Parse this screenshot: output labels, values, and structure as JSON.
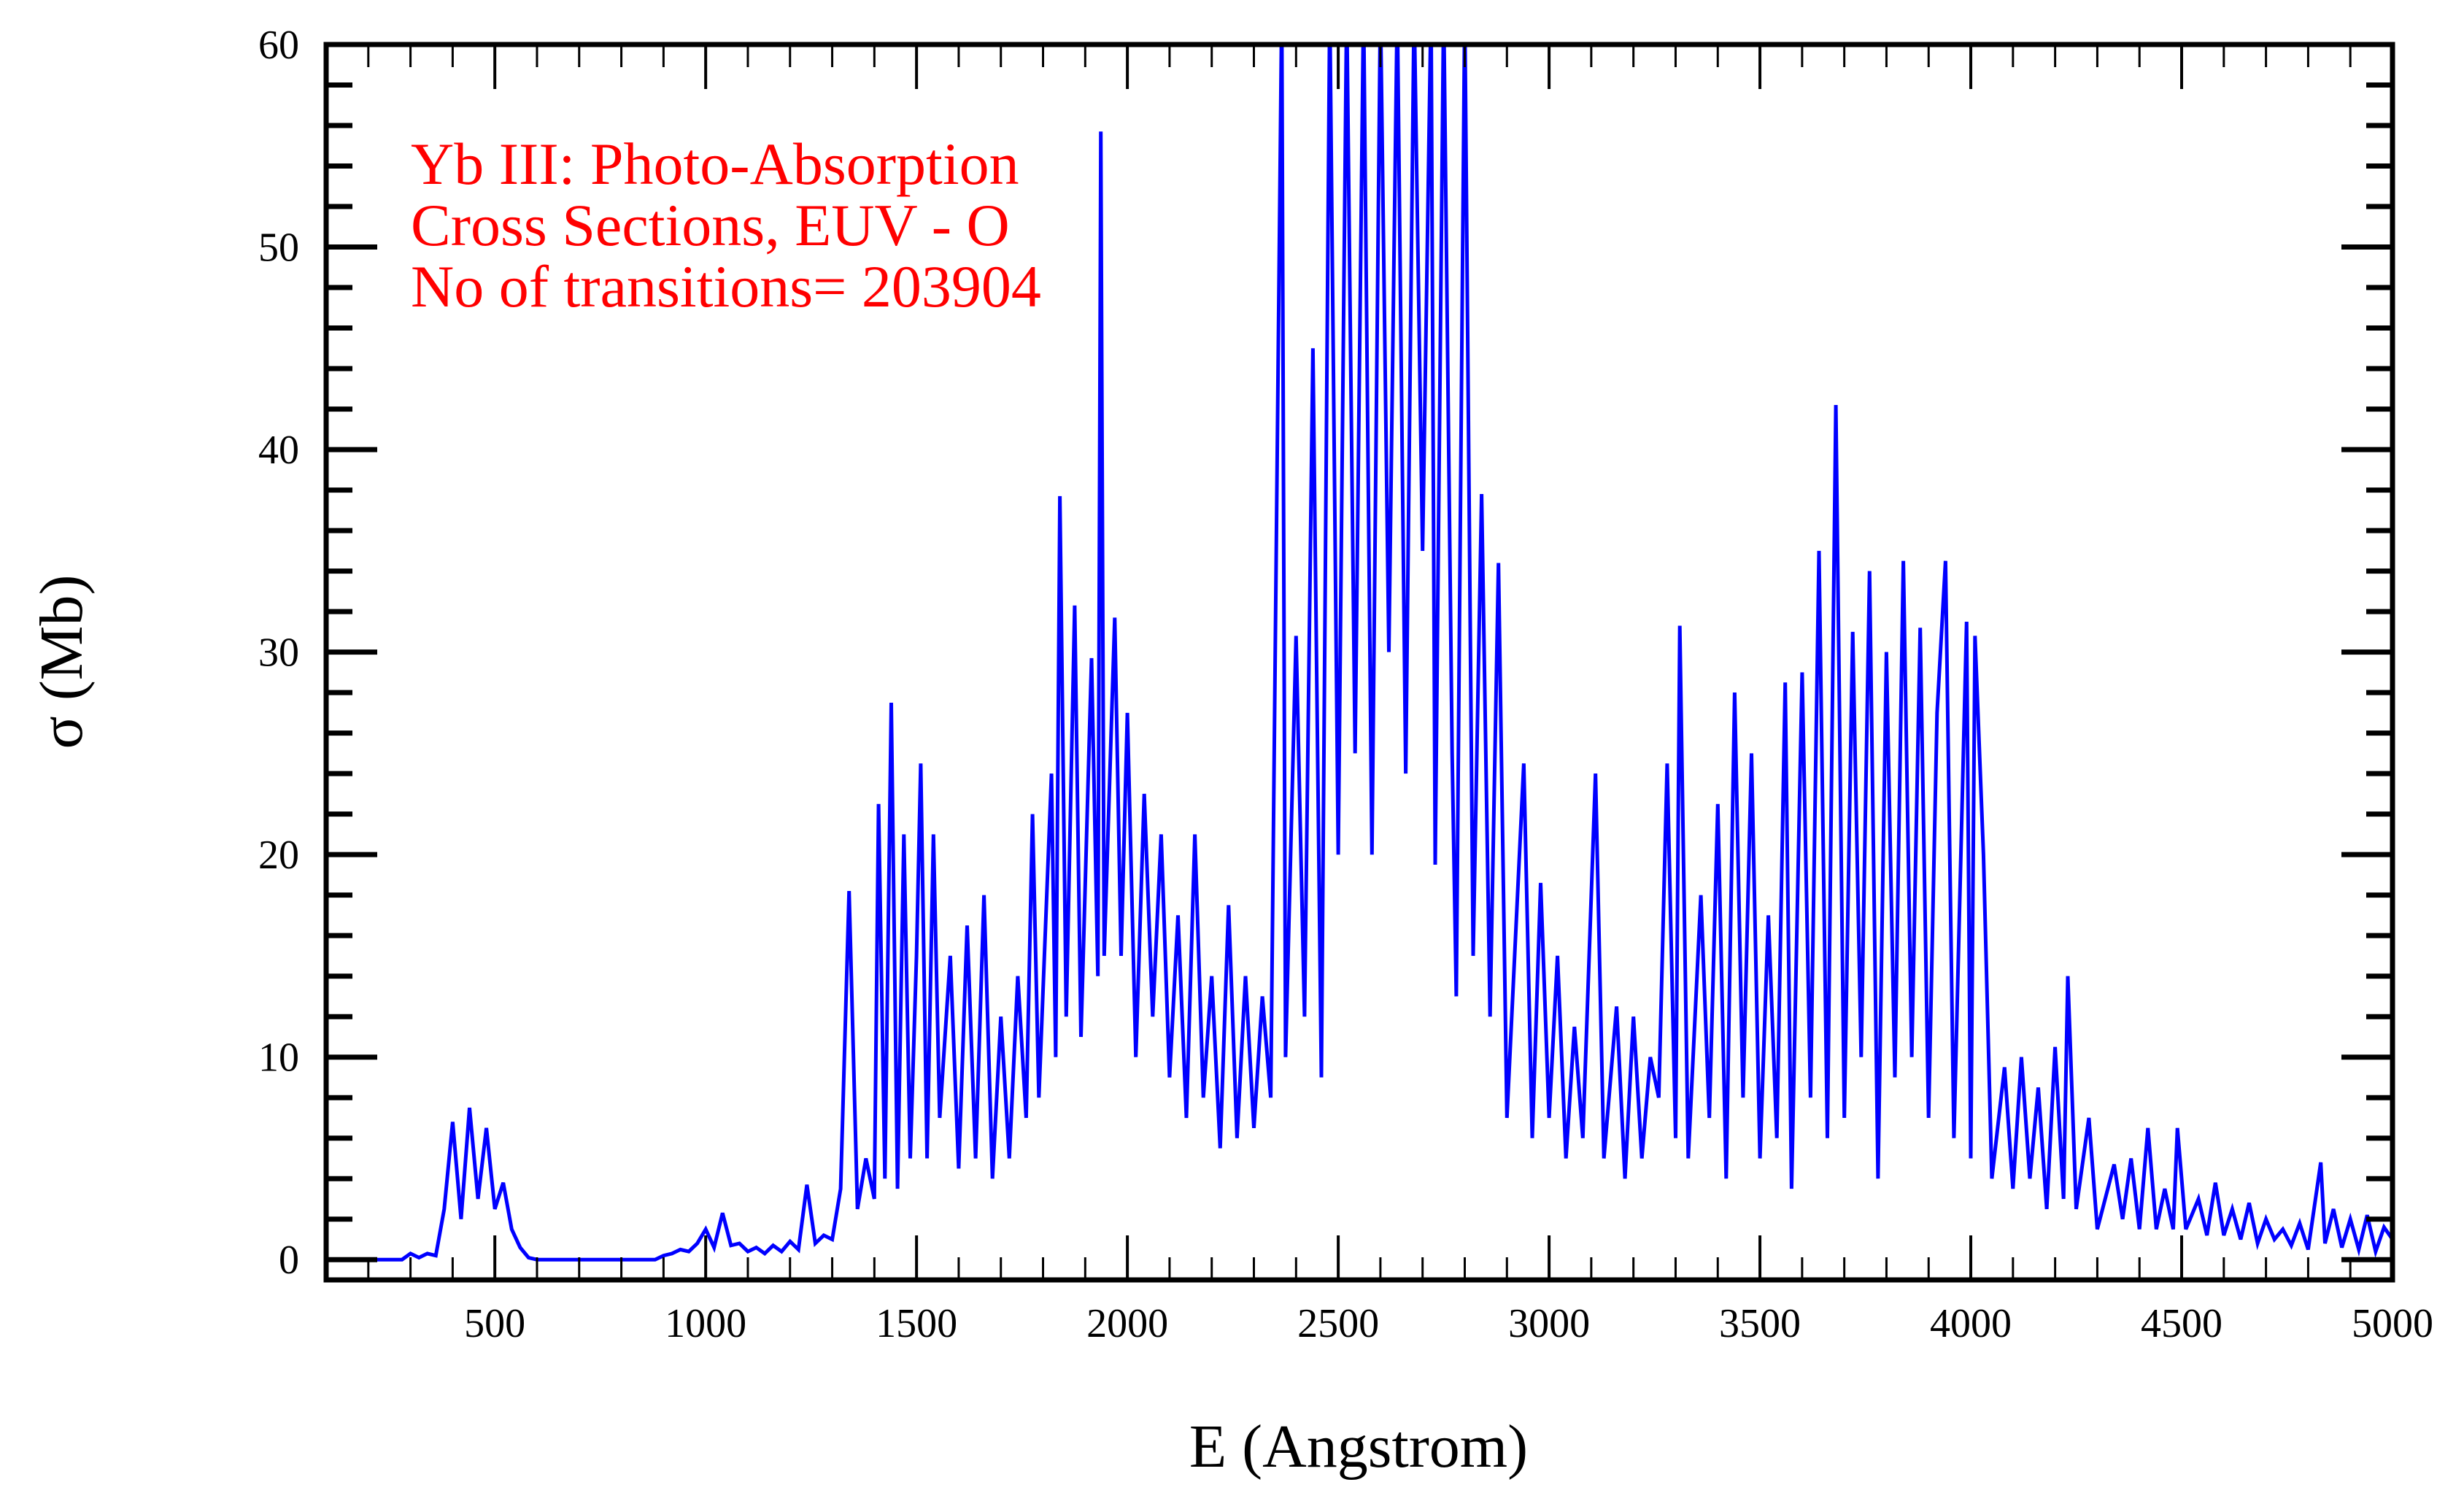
{
  "chart_data": {
    "type": "line",
    "title": "",
    "annotations": [
      "Yb III: Photo-Absorption",
      "Cross Sections, EUV - O",
      "No of transitions= 203904"
    ],
    "annotation_color": "#ff0000",
    "xlabel": "E (Angstrom)",
    "ylabel": "σ (Mb)",
    "xlim": [
      100,
      5000
    ],
    "ylim": [
      -1,
      60
    ],
    "xticks": [
      500,
      1000,
      1500,
      2000,
      2500,
      3000,
      3500,
      4000,
      4500,
      5000
    ],
    "xtick_labels": [
      "500",
      "1000",
      "1500",
      "2000",
      "2500",
      "3000",
      "3500",
      "4000",
      "4500",
      "5000"
    ],
    "x_minor_step": 100,
    "yticks": [
      0,
      10,
      20,
      30,
      40,
      50,
      60
    ],
    "ytick_labels": [
      "0",
      "10",
      "20",
      "30",
      "40",
      "50",
      "60"
    ],
    "y_minor_step": 2,
    "grid": false,
    "legend": "none",
    "series": [
      {
        "color": "#0000ff",
        "points": [
          [
            200,
            0
          ],
          [
            220,
            0
          ],
          [
            240,
            0
          ],
          [
            260,
            0
          ],
          [
            280,
            0
          ],
          [
            300,
            0.3
          ],
          [
            320,
            0.1
          ],
          [
            340,
            0.3
          ],
          [
            360,
            0.2
          ],
          [
            380,
            2.5
          ],
          [
            400,
            6.8
          ],
          [
            420,
            2.0
          ],
          [
            440,
            7.5
          ],
          [
            460,
            3
          ],
          [
            480,
            6.5
          ],
          [
            500,
            2.5
          ],
          [
            520,
            3.8
          ],
          [
            540,
            1.5
          ],
          [
            560,
            0.6
          ],
          [
            580,
            0.1
          ],
          [
            600,
            0
          ],
          [
            620,
            0
          ],
          [
            640,
            0
          ],
          [
            660,
            0
          ],
          [
            680,
            0
          ],
          [
            700,
            0
          ],
          [
            720,
            0
          ],
          [
            740,
            0
          ],
          [
            760,
            0
          ],
          [
            780,
            0
          ],
          [
            800,
            0
          ],
          [
            820,
            0
          ],
          [
            840,
            0
          ],
          [
            860,
            0
          ],
          [
            880,
            0
          ],
          [
            900,
            0.2
          ],
          [
            920,
            0.3
          ],
          [
            940,
            0.5
          ],
          [
            960,
            0.4
          ],
          [
            980,
            0.8
          ],
          [
            1000,
            1.5
          ],
          [
            1020,
            0.6
          ],
          [
            1040,
            2.3
          ],
          [
            1060,
            0.7
          ],
          [
            1080,
            0.8
          ],
          [
            1100,
            0.4
          ],
          [
            1120,
            0.6
          ],
          [
            1140,
            0.3
          ],
          [
            1160,
            0.7
          ],
          [
            1180,
            0.4
          ],
          [
            1200,
            0.9
          ],
          [
            1220,
            0.5
          ],
          [
            1240,
            3.7
          ],
          [
            1260,
            0.8
          ],
          [
            1280,
            1.2
          ],
          [
            1300,
            1.0
          ],
          [
            1320,
            3.5
          ],
          [
            1340,
            18.2
          ],
          [
            1360,
            2.5
          ],
          [
            1380,
            5.0
          ],
          [
            1400,
            3.0
          ],
          [
            1410,
            22.5
          ],
          [
            1425,
            4
          ],
          [
            1440,
            27.5
          ],
          [
            1455,
            3.5
          ],
          [
            1470,
            21
          ],
          [
            1485,
            5
          ],
          [
            1500,
            15
          ],
          [
            1510,
            24.5
          ],
          [
            1525,
            5
          ],
          [
            1540,
            21
          ],
          [
            1555,
            7
          ],
          [
            1580,
            15
          ],
          [
            1600,
            4.5
          ],
          [
            1620,
            16.5
          ],
          [
            1640,
            5
          ],
          [
            1660,
            18
          ],
          [
            1680,
            4
          ],
          [
            1700,
            12
          ],
          [
            1720,
            5
          ],
          [
            1740,
            14
          ],
          [
            1760,
            7
          ],
          [
            1775,
            22
          ],
          [
            1790,
            8
          ],
          [
            1820,
            24
          ],
          [
            1830,
            10
          ],
          [
            1840,
            37.7
          ],
          [
            1855,
            12
          ],
          [
            1875,
            32.3
          ],
          [
            1890,
            11
          ],
          [
            1915,
            29.7
          ],
          [
            1930,
            14
          ],
          [
            1937,
            55.7
          ],
          [
            1945,
            15
          ],
          [
            1970,
            31.7
          ],
          [
            1985,
            15
          ],
          [
            2000,
            27
          ],
          [
            2020,
            10
          ],
          [
            2040,
            23
          ],
          [
            2060,
            12
          ],
          [
            2080,
            21
          ],
          [
            2100,
            9
          ],
          [
            2120,
            17
          ],
          [
            2140,
            7
          ],
          [
            2160,
            21
          ],
          [
            2180,
            8
          ],
          [
            2200,
            14
          ],
          [
            2220,
            5.5
          ],
          [
            2240,
            17.5
          ],
          [
            2260,
            6
          ],
          [
            2280,
            14
          ],
          [
            2300,
            6.5
          ],
          [
            2320,
            13
          ],
          [
            2340,
            8
          ],
          [
            2366,
            62
          ],
          [
            2375,
            10
          ],
          [
            2400,
            30.8
          ],
          [
            2420,
            12
          ],
          [
            2440,
            45
          ],
          [
            2460,
            9
          ],
          [
            2480,
            62
          ],
          [
            2500,
            20
          ],
          [
            2520,
            62
          ],
          [
            2540,
            25
          ],
          [
            2560,
            62
          ],
          [
            2580,
            20
          ],
          [
            2600,
            62
          ],
          [
            2620,
            30
          ],
          [
            2640,
            62
          ],
          [
            2660,
            24
          ],
          [
            2680,
            62
          ],
          [
            2700,
            35
          ],
          [
            2720,
            62
          ],
          [
            2730,
            19.5
          ],
          [
            2750,
            62
          ],
          [
            2770,
            25
          ],
          [
            2780,
            13
          ],
          [
            2800,
            62
          ],
          [
            2820,
            15
          ],
          [
            2840,
            37.8
          ],
          [
            2860,
            12
          ],
          [
            2880,
            34.4
          ],
          [
            2900,
            7
          ],
          [
            2940,
            24.5
          ],
          [
            2960,
            6
          ],
          [
            2980,
            18.6
          ],
          [
            3000,
            7
          ],
          [
            3020,
            15
          ],
          [
            3040,
            5
          ],
          [
            3060,
            11.5
          ],
          [
            3080,
            6
          ],
          [
            3110,
            24
          ],
          [
            3130,
            5
          ],
          [
            3160,
            12.5
          ],
          [
            3180,
            4
          ],
          [
            3200,
            12
          ],
          [
            3220,
            5
          ],
          [
            3240,
            10
          ],
          [
            3260,
            8
          ],
          [
            3280,
            24.5
          ],
          [
            3300,
            6
          ],
          [
            3310,
            31.3
          ],
          [
            3330,
            5
          ],
          [
            3360,
            18
          ],
          [
            3380,
            7
          ],
          [
            3400,
            22.5
          ],
          [
            3420,
            4
          ],
          [
            3440,
            28
          ],
          [
            3460,
            8
          ],
          [
            3480,
            25
          ],
          [
            3500,
            5
          ],
          [
            3520,
            17
          ],
          [
            3540,
            6
          ],
          [
            3560,
            28.5
          ],
          [
            3575,
            3.5
          ],
          [
            3600,
            29
          ],
          [
            3620,
            8
          ],
          [
            3640,
            35
          ],
          [
            3660,
            6
          ],
          [
            3680,
            42.2
          ],
          [
            3700,
            7
          ],
          [
            3720,
            31
          ],
          [
            3740,
            10
          ],
          [
            3760,
            34
          ],
          [
            3780,
            4
          ],
          [
            3800,
            30
          ],
          [
            3820,
            9
          ],
          [
            3840,
            34.5
          ],
          [
            3860,
            10
          ],
          [
            3880,
            31.2
          ],
          [
            3900,
            7
          ],
          [
            3920,
            27
          ],
          [
            3940,
            34.5
          ],
          [
            3960,
            6
          ],
          [
            3990,
            31.5
          ],
          [
            4000,
            5
          ],
          [
            4010,
            30.8
          ],
          [
            4030,
            20
          ],
          [
            4050,
            4
          ],
          [
            4080,
            9.5
          ],
          [
            4100,
            3.5
          ],
          [
            4120,
            10
          ],
          [
            4140,
            4
          ],
          [
            4160,
            8.5
          ],
          [
            4180,
            2.5
          ],
          [
            4200,
            10.5
          ],
          [
            4220,
            3
          ],
          [
            4230,
            14
          ],
          [
            4250,
            2.5
          ],
          [
            4280,
            7
          ],
          [
            4300,
            1.5
          ],
          [
            4340,
            4.7
          ],
          [
            4360,
            2
          ],
          [
            4380,
            5
          ],
          [
            4400,
            1.5
          ],
          [
            4420,
            6.5
          ],
          [
            4440,
            1.5
          ],
          [
            4460,
            3.5
          ],
          [
            4480,
            1.5
          ],
          [
            4490,
            6.5
          ],
          [
            4510,
            1.5
          ],
          [
            4540,
            3
          ],
          [
            4560,
            1.2
          ],
          [
            4580,
            3.8
          ],
          [
            4600,
            1.2
          ],
          [
            4620,
            2.5
          ],
          [
            4640,
            1
          ],
          [
            4660,
            2.8
          ],
          [
            4680,
            0.8
          ],
          [
            4700,
            2
          ],
          [
            4720,
            1
          ],
          [
            4740,
            1.5
          ],
          [
            4760,
            0.7
          ],
          [
            4780,
            1.8
          ],
          [
            4800,
            0.5
          ],
          [
            4830,
            4.8
          ],
          [
            4840,
            0.8
          ],
          [
            4860,
            2.5
          ],
          [
            4880,
            0.6
          ],
          [
            4900,
            2
          ],
          [
            4920,
            0.5
          ],
          [
            4940,
            2.2
          ],
          [
            4960,
            0.4
          ],
          [
            4980,
            1.6
          ],
          [
            5000,
            1.0
          ]
        ]
      }
    ]
  }
}
